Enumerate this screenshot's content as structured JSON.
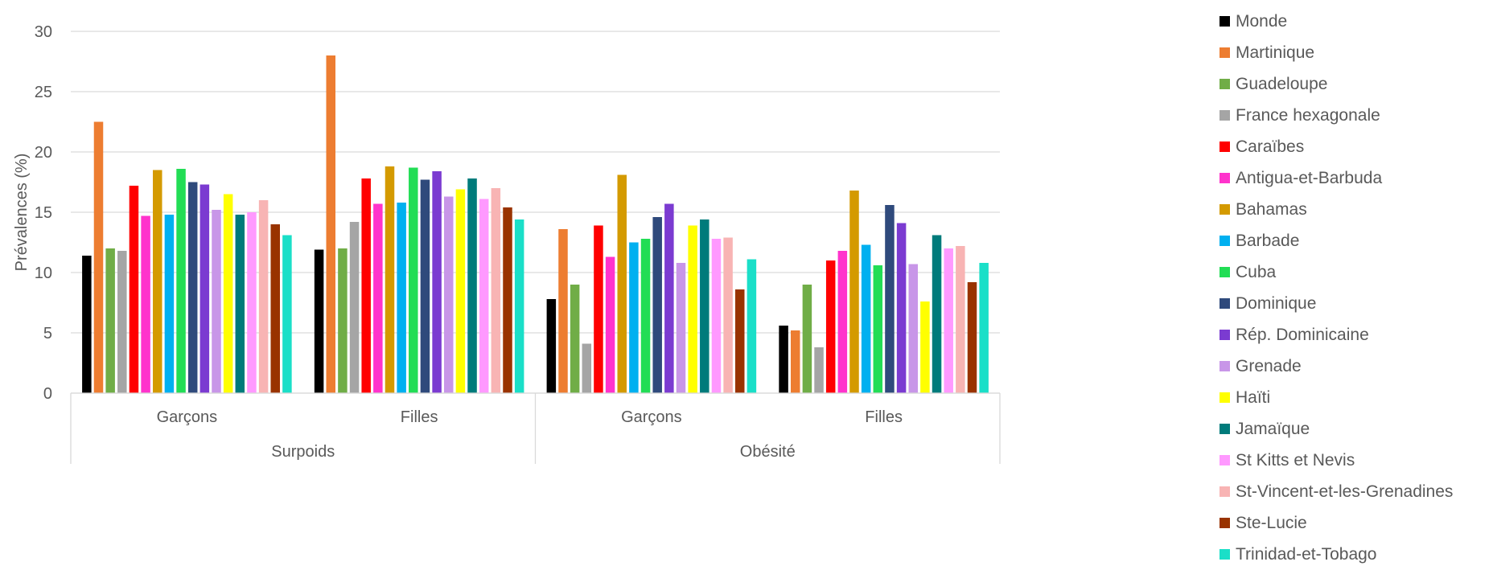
{
  "chart_data": {
    "type": "bar",
    "ylabel": "Prévalences (%)",
    "ylim": [
      0,
      30
    ],
    "yticks": [
      "0",
      "5",
      "10",
      "15",
      "20",
      "25",
      "30"
    ],
    "grid": true,
    "legend_position": "right",
    "groups": [
      {
        "label": "Surpoids",
        "categories": [
          "Garçons",
          "Filles"
        ]
      },
      {
        "label": "Obésité",
        "categories": [
          "Garçons",
          "Filles"
        ]
      }
    ],
    "categories": [
      "Garçons",
      "Filles",
      "Garçons",
      "Filles"
    ],
    "series": [
      {
        "name": "Monde",
        "color": "#000000",
        "values": [
          11.4,
          11.9,
          7.8,
          5.6
        ]
      },
      {
        "name": "Martinique",
        "color": "#ED7D31",
        "values": [
          22.5,
          28.0,
          13.6,
          5.2
        ]
      },
      {
        "name": "Guadeloupe",
        "color": "#70AD47",
        "values": [
          12.0,
          12.0,
          9.0,
          9.0
        ]
      },
      {
        "name": "France hexagonale",
        "color": "#A5A5A5",
        "values": [
          11.8,
          14.2,
          4.1,
          3.8
        ]
      },
      {
        "name": "Caraïbes",
        "color": "#FF0000",
        "values": [
          17.2,
          17.8,
          13.9,
          11.0
        ]
      },
      {
        "name": "Antigua-et-Barbuda",
        "color": "#FF33CC",
        "values": [
          14.7,
          15.7,
          11.3,
          11.8
        ]
      },
      {
        "name": "Bahamas",
        "color": "#D49A00",
        "values": [
          18.5,
          18.8,
          18.1,
          16.8
        ]
      },
      {
        "name": "Barbade",
        "color": "#00B0F0",
        "values": [
          14.8,
          15.8,
          12.5,
          12.3
        ]
      },
      {
        "name": "Cuba",
        "color": "#22DD55",
        "values": [
          18.6,
          18.7,
          12.8,
          10.6
        ]
      },
      {
        "name": "Dominique",
        "color": "#2F4A7C",
        "values": [
          17.5,
          17.7,
          14.6,
          15.6
        ]
      },
      {
        "name": "Rép. Dominicaine",
        "color": "#7B3BD1",
        "values": [
          17.3,
          18.4,
          15.7,
          14.1
        ]
      },
      {
        "name": "Grenade",
        "color": "#C896E8",
        "values": [
          15.2,
          16.3,
          10.8,
          10.7
        ]
      },
      {
        "name": "Haïti",
        "color": "#FFFF00",
        "values": [
          16.5,
          16.9,
          13.9,
          7.6
        ]
      },
      {
        "name": "Jamaïque",
        "color": "#007B7B",
        "values": [
          14.8,
          17.8,
          14.4,
          13.1
        ]
      },
      {
        "name": "St Kitts et Nevis",
        "color": "#FF99FF",
        "values": [
          15.0,
          16.1,
          12.8,
          12.0
        ]
      },
      {
        "name": "St-Vincent-et-les-Grenadines",
        "color": "#F8B4B4",
        "values": [
          16.0,
          17.0,
          12.9,
          12.2
        ]
      },
      {
        "name": "Ste-Lucie",
        "color": "#993300",
        "values": [
          14.0,
          15.4,
          8.6,
          9.2
        ]
      },
      {
        "name": "Trinidad-et-Tobago",
        "color": "#1ADFC8",
        "values": [
          13.1,
          14.4,
          11.1,
          10.8
        ]
      }
    ]
  }
}
